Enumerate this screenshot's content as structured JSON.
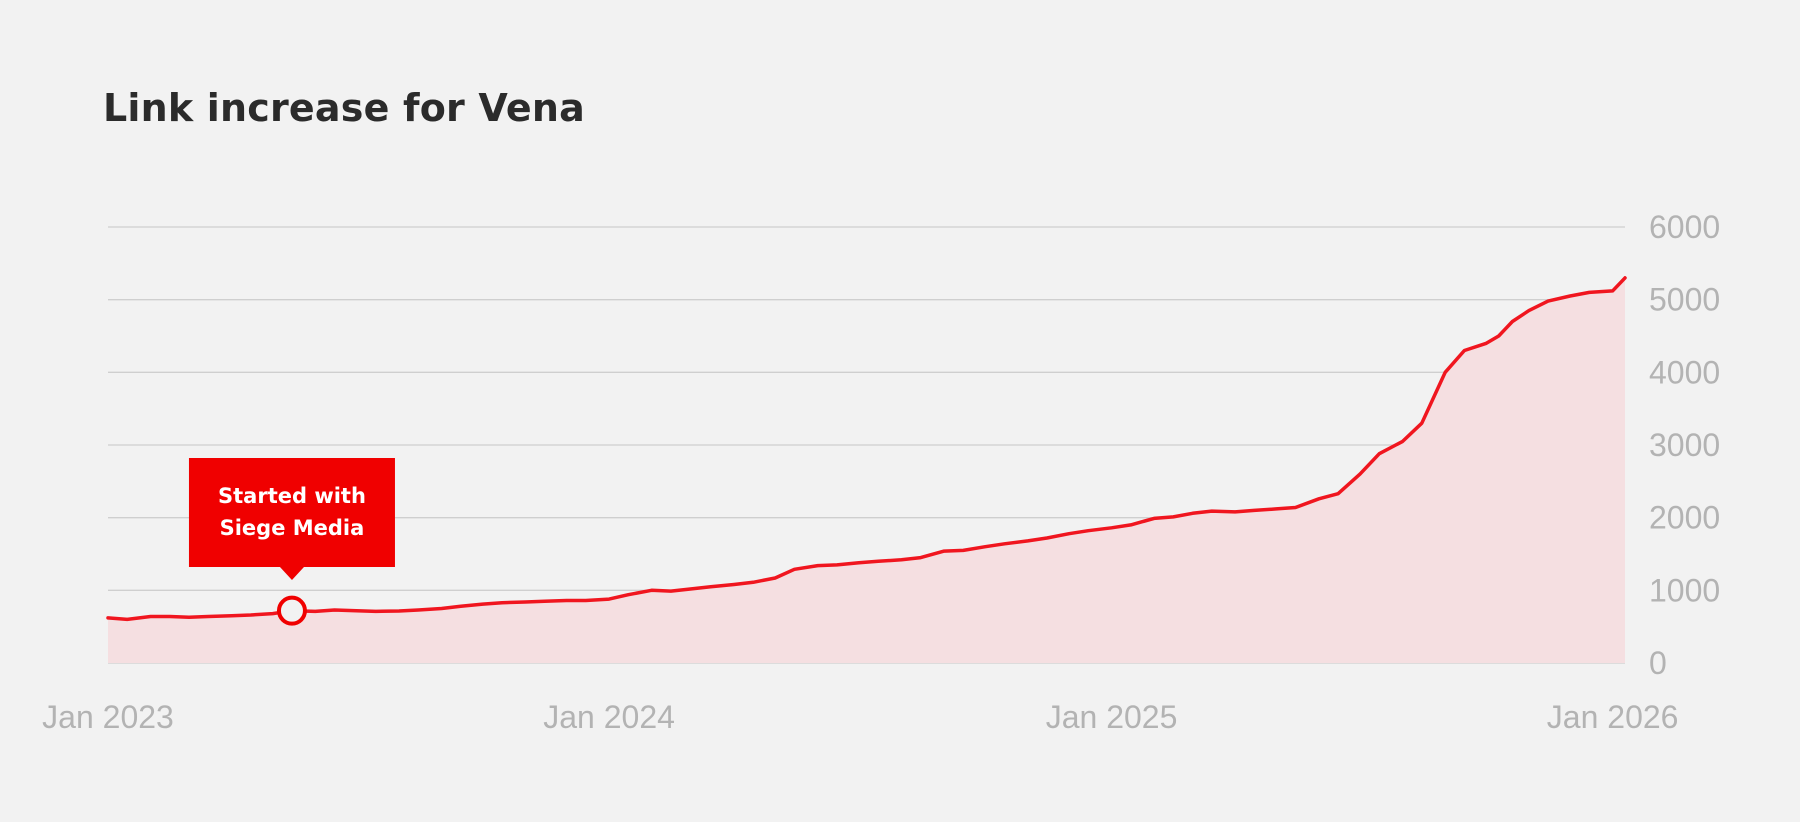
{
  "title": "Link increase for Vena",
  "colors": {
    "background": "#f2f2f2",
    "line": "#f0161f",
    "area": "#f5dfe1",
    "grid": "#cfcfcf",
    "annotation": "#f00000",
    "title": "#2b2b2b",
    "tick": "#b3b3b3"
  },
  "chart_data": {
    "type": "area",
    "title": "Link increase for Vena",
    "xlabel": "",
    "ylabel": "",
    "ylim": [
      0,
      6000
    ],
    "xlim": [
      "2023-01-01",
      "2026-01-10"
    ],
    "y_ticks": [
      0,
      1000,
      2000,
      3000,
      4000,
      5000,
      6000
    ],
    "x_ticks": [
      {
        "date": "2023-01-01",
        "label": "Jan 2023"
      },
      {
        "date": "2024-01-01",
        "label": "Jan 2024"
      },
      {
        "date": "2025-01-01",
        "label": "Jan 2025"
      },
      {
        "date": "2026-01-01",
        "label": "Jan 2026"
      }
    ],
    "grid": true,
    "y_axis_side": "right",
    "annotation": {
      "lines": [
        "Started with",
        "Siege Media"
      ],
      "date": "2023-05-15",
      "value": 720
    },
    "series": [
      {
        "x": [
          "2023-01-01",
          "2023-01-15",
          "2023-02-01",
          "2023-02-15",
          "2023-03-01",
          "2023-03-15",
          "2023-04-01",
          "2023-04-15",
          "2023-05-01",
          "2023-05-15",
          "2023-06-01",
          "2023-06-15",
          "2023-07-01",
          "2023-07-15",
          "2023-08-01",
          "2023-08-15",
          "2023-09-01",
          "2023-09-15",
          "2023-10-01",
          "2023-10-15",
          "2023-11-01",
          "2023-11-15",
          "2023-12-01",
          "2023-12-15",
          "2024-01-01",
          "2024-01-15",
          "2024-02-01",
          "2024-02-15",
          "2024-03-01",
          "2024-03-15",
          "2024-04-01",
          "2024-04-15",
          "2024-05-01",
          "2024-05-15",
          "2024-06-01",
          "2024-06-15",
          "2024-07-01",
          "2024-07-15",
          "2024-08-01",
          "2024-08-15",
          "2024-09-01",
          "2024-09-15",
          "2024-10-01",
          "2024-10-15",
          "2024-11-01",
          "2024-11-15",
          "2024-12-01",
          "2024-12-15",
          "2025-01-01",
          "2025-01-15",
          "2025-02-01",
          "2025-02-15",
          "2025-03-01",
          "2025-03-15",
          "2025-04-01",
          "2025-04-15",
          "2025-05-01",
          "2025-05-15",
          "2025-06-01",
          "2025-06-15",
          "2025-07-01",
          "2025-07-15",
          "2025-08-01",
          "2025-08-15",
          "2025-09-01",
          "2025-09-15",
          "2025-10-01",
          "2025-10-10",
          "2025-10-15",
          "2025-10-20",
          "2025-11-01",
          "2025-11-15",
          "2025-12-01",
          "2025-12-15",
          "2026-01-01",
          "2026-01-10"
        ],
        "values": [
          620,
          600,
          640,
          640,
          630,
          640,
          650,
          660,
          680,
          720,
          710,
          730,
          720,
          710,
          715,
          730,
          750,
          780,
          810,
          830,
          840,
          850,
          860,
          860,
          880,
          940,
          1000,
          990,
          1020,
          1050,
          1080,
          1110,
          1170,
          1290,
          1340,
          1350,
          1380,
          1400,
          1420,
          1450,
          1540,
          1550,
          1600,
          1640,
          1680,
          1720,
          1780,
          1820,
          1860,
          1900,
          1990,
          2010,
          2060,
          2090,
          2080,
          2100,
          2120,
          2140,
          2260,
          2330,
          2600,
          2880,
          3050,
          3300,
          4000,
          4300,
          4400,
          4500,
          4600,
          4700,
          4850,
          4980,
          5050,
          5100,
          5120,
          5300
        ]
      }
    ]
  }
}
